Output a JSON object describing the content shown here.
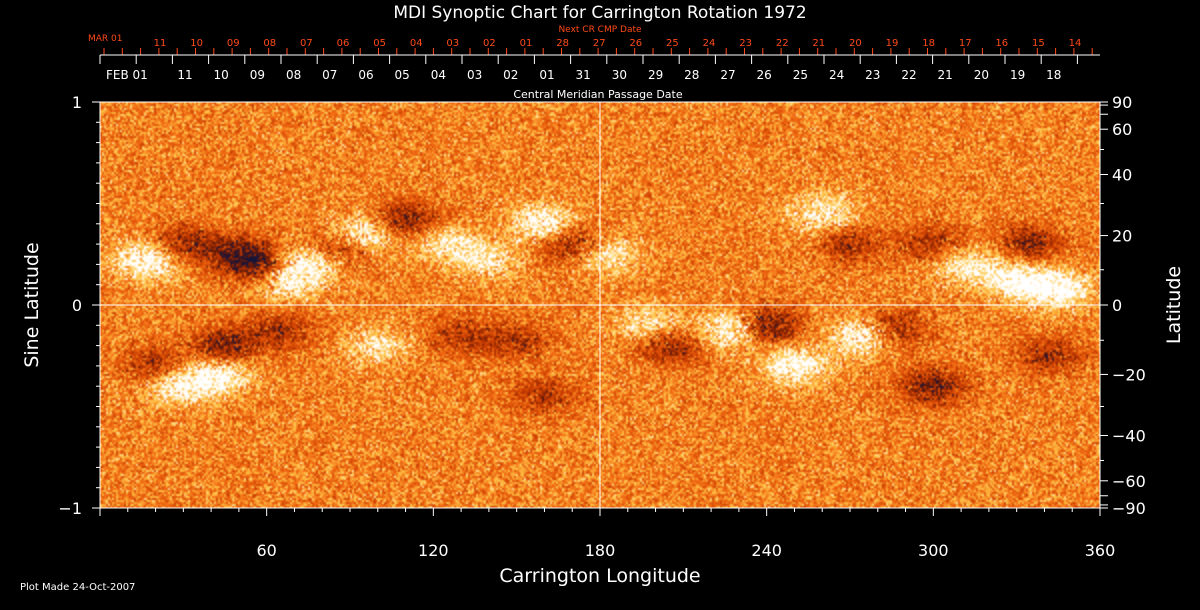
{
  "chart_data": {
    "type": "heatmap",
    "title": "MDI Synoptic Chart for Carrington Rotation 1972",
    "xlabel": "Carrington Longitude",
    "ylabel_left": "Sine Latitude",
    "ylabel_right": "Latitude",
    "xlim": [
      0,
      360
    ],
    "ylim": [
      -1,
      1
    ],
    "x_ticks": [
      60,
      120,
      180,
      240,
      300,
      360
    ],
    "y_ticks_left": [
      {
        "value": 1,
        "label": "1"
      },
      {
        "value": 0,
        "label": "0"
      },
      {
        "value": -1,
        "label": "−1"
      }
    ],
    "y_ticks_right": [
      90,
      60,
      40,
      20,
      0,
      -20,
      -40,
      -60,
      -90
    ],
    "y_ticks_right_labels": [
      "90",
      "60",
      "40",
      "20",
      "0",
      "−20",
      "−40",
      "−60",
      "−90"
    ],
    "crosshair": {
      "longitude": 180,
      "sine_latitude": 0
    },
    "colormap": [
      "#14143c",
      "#6a1a05",
      "#c73a00",
      "#f26a12",
      "#ffc84a",
      "#ffffff"
    ],
    "top_axis": {
      "label": "Central Meridian Passage Date",
      "start_label": "FEB 01",
      "labels": [
        "11",
        "10",
        "09",
        "08",
        "07",
        "06",
        "05",
        "04",
        "03",
        "02",
        "01",
        "31",
        "30",
        "29",
        "28",
        "27",
        "26",
        "25",
        "24",
        "23",
        "22",
        "21",
        "20",
        "19",
        "18"
      ]
    },
    "next_axis": {
      "label": "Next CR CMP Date",
      "start_label": "MAR 01",
      "labels": [
        "11",
        "10",
        "09",
        "08",
        "07",
        "06",
        "05",
        "04",
        "03",
        "02",
        "01",
        "28",
        "27",
        "26",
        "25",
        "24",
        "23",
        "22",
        "21",
        "20",
        "19",
        "18",
        "17",
        "16",
        "15",
        "14"
      ]
    },
    "active_regions": [
      {
        "lon": 17,
        "sinlat": 0.22,
        "polarity": "positive",
        "strength": 0.9
      },
      {
        "lon": 30,
        "sinlat": 0.3,
        "polarity": "negative",
        "strength": 0.7
      },
      {
        "lon": 50,
        "sinlat": 0.25,
        "polarity": "negative",
        "strength": 0.9
      },
      {
        "lon": 60,
        "sinlat": 0.18,
        "polarity": "negative",
        "strength": 0.8
      },
      {
        "lon": 67,
        "sinlat": 0.12,
        "polarity": "positive",
        "strength": 0.9
      },
      {
        "lon": 75,
        "sinlat": 0.22,
        "polarity": "positive",
        "strength": 0.8
      },
      {
        "lon": 85,
        "sinlat": 0.28,
        "polarity": "negative",
        "strength": 0.7
      },
      {
        "lon": 95,
        "sinlat": 0.35,
        "polarity": "positive",
        "strength": 0.8
      },
      {
        "lon": 110,
        "sinlat": 0.42,
        "polarity": "negative",
        "strength": 0.8
      },
      {
        "lon": 125,
        "sinlat": 0.3,
        "polarity": "positive",
        "strength": 0.6
      },
      {
        "lon": 140,
        "sinlat": 0.22,
        "polarity": "positive",
        "strength": 0.5
      },
      {
        "lon": 160,
        "sinlat": 0.4,
        "polarity": "positive",
        "strength": 0.8
      },
      {
        "lon": 170,
        "sinlat": 0.3,
        "polarity": "negative",
        "strength": 0.8
      },
      {
        "lon": 182,
        "sinlat": 0.25,
        "polarity": "positive",
        "strength": 0.7
      },
      {
        "lon": 240,
        "sinlat": -0.1,
        "polarity": "negative",
        "strength": 1.0
      },
      {
        "lon": 228,
        "sinlat": -0.12,
        "polarity": "positive",
        "strength": 0.9
      },
      {
        "lon": 205,
        "sinlat": -0.2,
        "polarity": "negative",
        "strength": 0.7
      },
      {
        "lon": 198,
        "sinlat": -0.1,
        "polarity": "positive",
        "strength": 0.6
      },
      {
        "lon": 250,
        "sinlat": -0.3,
        "polarity": "positive",
        "strength": 0.8
      },
      {
        "lon": 260,
        "sinlat": 0.45,
        "polarity": "positive",
        "strength": 0.7
      },
      {
        "lon": 270,
        "sinlat": 0.3,
        "polarity": "negative",
        "strength": 0.6
      },
      {
        "lon": 275,
        "sinlat": -0.15,
        "polarity": "positive",
        "strength": 0.9
      },
      {
        "lon": 285,
        "sinlat": -0.12,
        "polarity": "negative",
        "strength": 0.8
      },
      {
        "lon": 300,
        "sinlat": -0.4,
        "polarity": "negative",
        "strength": 0.8
      },
      {
        "lon": 300,
        "sinlat": 0.3,
        "polarity": "negative",
        "strength": 0.6
      },
      {
        "lon": 312,
        "sinlat": 0.2,
        "polarity": "positive",
        "strength": 0.7
      },
      {
        "lon": 330,
        "sinlat": 0.12,
        "polarity": "positive",
        "strength": 0.8
      },
      {
        "lon": 335,
        "sinlat": 0.3,
        "polarity": "negative",
        "strength": 0.7
      },
      {
        "lon": 345,
        "sinlat": 0.08,
        "polarity": "positive",
        "strength": 0.9
      },
      {
        "lon": 342,
        "sinlat": -0.25,
        "polarity": "negative",
        "strength": 0.6
      },
      {
        "lon": 45,
        "sinlat": -0.2,
        "polarity": "negative",
        "strength": 0.8
      },
      {
        "lon": 42,
        "sinlat": -0.35,
        "polarity": "positive",
        "strength": 0.8
      },
      {
        "lon": 28,
        "sinlat": -0.4,
        "polarity": "positive",
        "strength": 0.7
      },
      {
        "lon": 20,
        "sinlat": -0.3,
        "polarity": "negative",
        "strength": 0.6
      },
      {
        "lon": 65,
        "sinlat": -0.12,
        "polarity": "negative",
        "strength": 0.6
      },
      {
        "lon": 100,
        "sinlat": -0.2,
        "polarity": "positive",
        "strength": 0.5
      },
      {
        "lon": 130,
        "sinlat": -0.15,
        "polarity": "negative",
        "strength": 0.5
      },
      {
        "lon": 150,
        "sinlat": -0.18,
        "polarity": "negative",
        "strength": 0.5
      },
      {
        "lon": 160,
        "sinlat": -0.45,
        "polarity": "negative",
        "strength": 0.5
      }
    ]
  },
  "footer": {
    "plot_made": "Plot Made 24-Oct-2007"
  }
}
